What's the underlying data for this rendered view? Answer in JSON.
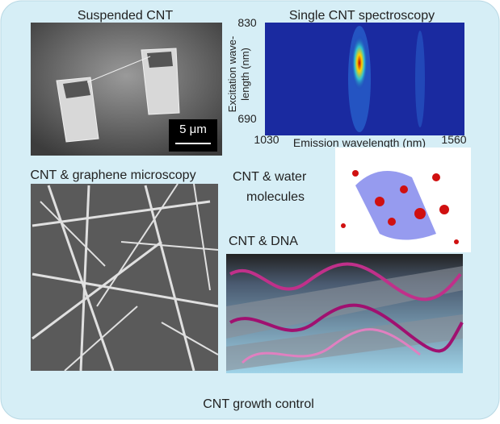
{
  "panels": {
    "suspended": {
      "title": "Suspended CNT",
      "scale_bar": "5 μm"
    },
    "spectroscopy": {
      "title": "Single CNT spectroscopy",
      "y_axis": {
        "label_lines": [
          "Excitation wave-",
          "length (nm)"
        ],
        "ticks": [
          830,
          690
        ]
      },
      "x_axis": {
        "label": "Emission wavelength (nm)",
        "ticks": [
          1030,
          1560
        ]
      }
    },
    "microscopy": {
      "title": "CNT & graphene microscopy"
    },
    "water": {
      "title_lines": [
        "CNT & water",
        "molecules"
      ]
    },
    "dna": {
      "title": "CNT & DNA"
    },
    "footer": "CNT growth control"
  }
}
